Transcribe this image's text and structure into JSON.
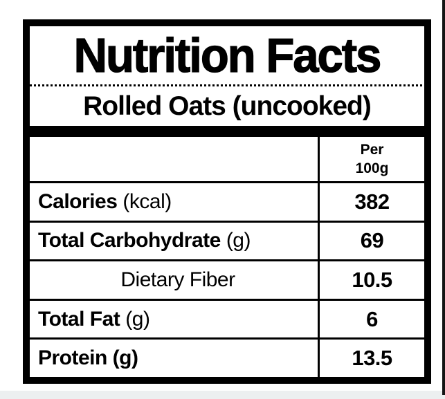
{
  "label": {
    "title": "Nutrition Facts",
    "subtitle": "Rolled Oats (uncooked)",
    "header": {
      "amount_line1": "Per",
      "amount_line2": "100g"
    },
    "rows": [
      {
        "name": "Calories",
        "unit": "(kcal)",
        "value": "382",
        "indent": "main"
      },
      {
        "name": "Total Carbohydrate",
        "unit": "(g)",
        "value": "69",
        "indent": "main"
      },
      {
        "name": "Dietary Fiber",
        "unit": "",
        "value": "10.5",
        "indent": "sub"
      },
      {
        "name": "Total Fat",
        "unit": "(g)",
        "value": "6",
        "indent": "main"
      },
      {
        "name": "Protein (g)",
        "unit": "",
        "value": "13.5",
        "indent": "main"
      }
    ],
    "colors": {
      "ink": "#000000",
      "paper": "#ffffff",
      "edge_line": "#151515",
      "bottom_strip": "#eceff0"
    }
  }
}
